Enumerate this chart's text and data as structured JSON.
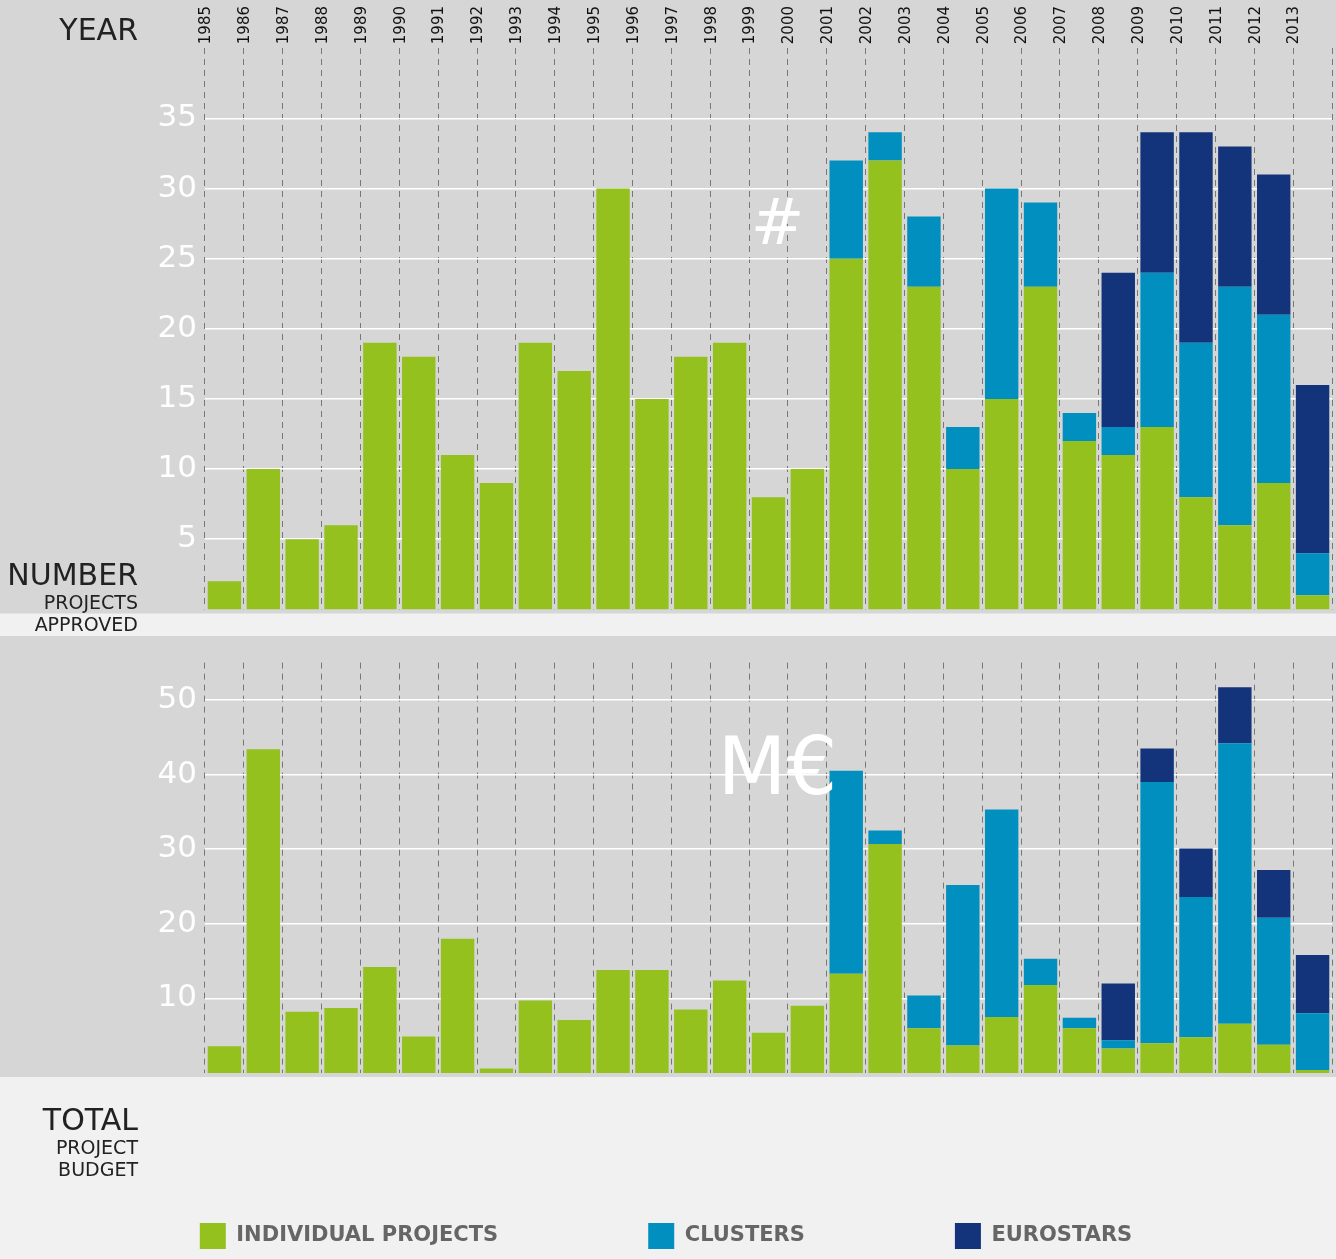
{
  "chart_data": [
    {
      "type": "bar",
      "stacked": true,
      "xlabel": "YEAR",
      "ylabel": "NUMBER PROJECTS APPROVED",
      "annotations": [
        "#"
      ],
      "grid": true,
      "categories": [
        "1985",
        "1986",
        "1987",
        "1988",
        "1989",
        "1990",
        "1991",
        "1992",
        "1993",
        "1994",
        "1995",
        "1996",
        "1997",
        "1998",
        "1999",
        "2000",
        "2001",
        "2002",
        "2003",
        "2004",
        "2005",
        "2006",
        "2007",
        "2008",
        "2009",
        "2010",
        "2011",
        "2012",
        "2013"
      ],
      "ylim": [
        0,
        40
      ],
      "yticks": [
        5,
        10,
        15,
        20,
        25,
        30,
        35
      ],
      "series": [
        {
          "color": "#95c11f",
          "values": [
            2,
            10,
            5,
            6,
            19,
            18,
            11,
            9,
            19,
            17,
            30,
            15,
            18,
            19,
            8,
            10,
            25,
            32,
            23,
            10,
            15,
            23,
            12,
            11,
            13,
            8,
            6,
            9,
            1
          ]
        },
        {
          "color": "#008fbe",
          "values": [
            null,
            null,
            null,
            null,
            null,
            null,
            null,
            null,
            null,
            null,
            null,
            null,
            null,
            null,
            null,
            null,
            7,
            2,
            5,
            3,
            15,
            6,
            2,
            2,
            11,
            11,
            17,
            12,
            3
          ]
        },
        {
          "color": "#13347a",
          "values": [
            null,
            null,
            null,
            null,
            null,
            null,
            null,
            null,
            null,
            null,
            null,
            null,
            null,
            null,
            null,
            null,
            null,
            null,
            null,
            null,
            null,
            null,
            null,
            11,
            10,
            15,
            10,
            10,
            12
          ]
        }
      ]
    },
    {
      "type": "bar",
      "stacked": true,
      "ylabel": "TOTAL PROJECT BUDGET",
      "annotations": [
        "M€"
      ],
      "grid": true,
      "tick_labels": "y",
      "legend": "bottom",
      "categories": [
        "1985",
        "1986",
        "1987",
        "1988",
        "1989",
        "1990",
        "1991",
        "1992",
        "1993",
        "1994",
        "1995",
        "1996",
        "1997",
        "1998",
        "1999",
        "2000",
        "2001",
        "2002",
        "2003",
        "2004",
        "2005",
        "2006",
        "2007",
        "2008",
        "2009",
        "2010",
        "2011",
        "2012",
        "2013"
      ],
      "ylim": [
        0,
        55
      ],
      "yticks": [
        10,
        20,
        30,
        40,
        50
      ],
      "series": [
        {
          "name": "INDIVIDUAL PROJECTS",
          "color": "#95c11f",
          "values": [
            3.6,
            43.4,
            8.2,
            8.7,
            14.2,
            4.9,
            18.0,
            0.6,
            9.7,
            7.1,
            13.8,
            13.8,
            8.5,
            12.4,
            5.4,
            9.0,
            13.3,
            30.7,
            6.0,
            3.7,
            7.5,
            11.8,
            6.0,
            3.3,
            4.0,
            4.8,
            6.6,
            3.8,
            0.4
          ]
        },
        {
          "name": "CLUSTERS",
          "color": "#008fbe",
          "values": [
            null,
            null,
            null,
            null,
            null,
            null,
            null,
            null,
            null,
            null,
            null,
            null,
            null,
            null,
            null,
            null,
            27.2,
            1.8,
            4.4,
            21.5,
            27.8,
            3.5,
            1.4,
            1.1,
            35.0,
            18.8,
            37.6,
            17.0,
            7.6
          ]
        },
        {
          "name": "EUROSTARS",
          "color": "#13347a",
          "values": [
            null,
            null,
            null,
            null,
            null,
            null,
            null,
            null,
            null,
            null,
            null,
            null,
            null,
            null,
            null,
            null,
            null,
            null,
            null,
            null,
            null,
            null,
            null,
            7.6,
            4.5,
            6.5,
            7.5,
            6.4,
            7.8
          ]
        }
      ]
    }
  ]
}
